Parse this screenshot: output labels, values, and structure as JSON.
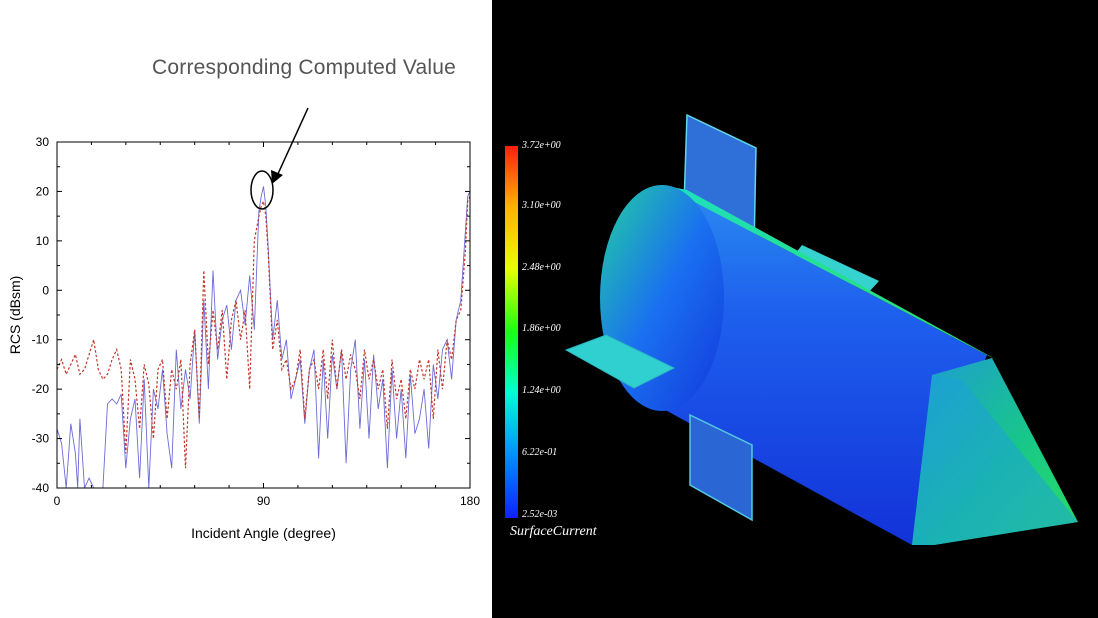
{
  "annotation": "Corresponding Computed Value",
  "chart_data": {
    "type": "line",
    "xlabel": "Incident Angle (degree)",
    "ylabel": "RCS (dBsm)",
    "xlim": [
      0,
      180
    ],
    "ylim": [
      -40,
      30
    ],
    "x_ticks": [
      "0",
      "90",
      "180"
    ],
    "y_ticks": [
      "30",
      "20",
      "10",
      "0",
      "-10",
      "-20",
      "-30",
      "-40"
    ],
    "grid": false,
    "legend": "none",
    "series": [
      {
        "style": "solid",
        "color": "#6b6bd6",
        "x": [
          0,
          2,
          4,
          6,
          8,
          9,
          10,
          12,
          14,
          16,
          18,
          20,
          22,
          24,
          26,
          28,
          30,
          32,
          34,
          36,
          38,
          40,
          42,
          44,
          46,
          48,
          50,
          52,
          54,
          56,
          58,
          60,
          62,
          64,
          66,
          68,
          70,
          72,
          74,
          76,
          78,
          80,
          82,
          84,
          86,
          88,
          89,
          90,
          91,
          92,
          94,
          96,
          98,
          100,
          102,
          104,
          106,
          108,
          110,
          112,
          114,
          116,
          118,
          120,
          122,
          124,
          126,
          128,
          130,
          132,
          134,
          136,
          138,
          140,
          142,
          144,
          146,
          148,
          150,
          152,
          154,
          156,
          158,
          160,
          162,
          164,
          166,
          168,
          170,
          172,
          174,
          176,
          178,
          179,
          180
        ],
        "y": [
          -28,
          -31,
          -40,
          -27,
          -33,
          -40,
          -26,
          -40,
          -38,
          -40,
          -40,
          -40,
          -23,
          -22,
          -23,
          -21,
          -36,
          -26,
          -22,
          -38,
          -18,
          -40,
          -20,
          -24,
          -16,
          -29,
          -36,
          -12,
          -24,
          -16,
          -22,
          -8,
          -27,
          -2,
          -20,
          4,
          -14,
          -6,
          -3,
          -12,
          -2,
          0,
          -7,
          3,
          -8,
          16,
          19,
          21,
          17,
          9,
          -10,
          -2,
          -14,
          -10,
          -22,
          -18,
          -14,
          -27,
          -16,
          -12,
          -34,
          -14,
          -30,
          -13,
          -20,
          -12,
          -35,
          -16,
          -10,
          -28,
          -14,
          -30,
          -13,
          -24,
          -18,
          -36,
          -16,
          -30,
          -20,
          -34,
          -17,
          -29,
          -26,
          -20,
          -32,
          -15,
          -22,
          -12,
          -10,
          -18,
          -6,
          -2,
          12,
          19,
          20
        ]
      },
      {
        "style": "dashed",
        "color": "#c0392b",
        "x": [
          0,
          2,
          4,
          6,
          8,
          10,
          12,
          14,
          16,
          18,
          20,
          22,
          24,
          26,
          28,
          30,
          32,
          34,
          36,
          38,
          40,
          42,
          44,
          46,
          48,
          50,
          52,
          54,
          56,
          58,
          60,
          62,
          64,
          66,
          68,
          70,
          72,
          74,
          76,
          78,
          80,
          82,
          84,
          86,
          88,
          89,
          90,
          91,
          92,
          94,
          96,
          98,
          100,
          102,
          104,
          106,
          108,
          110,
          112,
          114,
          116,
          118,
          120,
          122,
          124,
          126,
          128,
          130,
          132,
          134,
          136,
          138,
          140,
          142,
          144,
          146,
          148,
          150,
          152,
          154,
          156,
          158,
          160,
          162,
          164,
          166,
          168,
          170,
          172,
          174,
          176,
          178,
          179,
          180
        ],
        "y": [
          -16,
          -14,
          -17,
          -15,
          -13,
          -17,
          -16,
          -13,
          -10,
          -16,
          -18,
          -17,
          -14,
          -12,
          -16,
          -33,
          -14,
          -18,
          -28,
          -15,
          -19,
          -30,
          -16,
          -14,
          -26,
          -16,
          -20,
          -14,
          -36,
          -15,
          -8,
          -26,
          4,
          -15,
          -4,
          -12,
          -4,
          -18,
          -6,
          -2,
          -10,
          -4,
          -20,
          10,
          15,
          17,
          18,
          15,
          8,
          -12,
          -6,
          -16,
          -14,
          -20,
          -18,
          -12,
          -26,
          -16,
          -14,
          -20,
          -12,
          -22,
          -10,
          -20,
          -12,
          -18,
          -13,
          -16,
          -22,
          -12,
          -18,
          -14,
          -20,
          -16,
          -28,
          -14,
          -22,
          -18,
          -26,
          -16,
          -20,
          -14,
          -18,
          -14,
          -26,
          -12,
          -20,
          -10,
          -14,
          -6,
          -4,
          8,
          18,
          19
        ]
      }
    ]
  },
  "colorbar": {
    "title": "SurfaceCurrent",
    "labels": [
      "3.72e+00",
      "3.10e+00",
      "2.48e+00",
      "1.86e+00",
      "1.24e+00",
      "6.22e-01",
      "2.52e-03"
    ]
  },
  "colors": {
    "model_body": "#1f5cf0",
    "model_nose": "#1ec86a",
    "fins": "#2fd6d6",
    "background": "#000000"
  }
}
